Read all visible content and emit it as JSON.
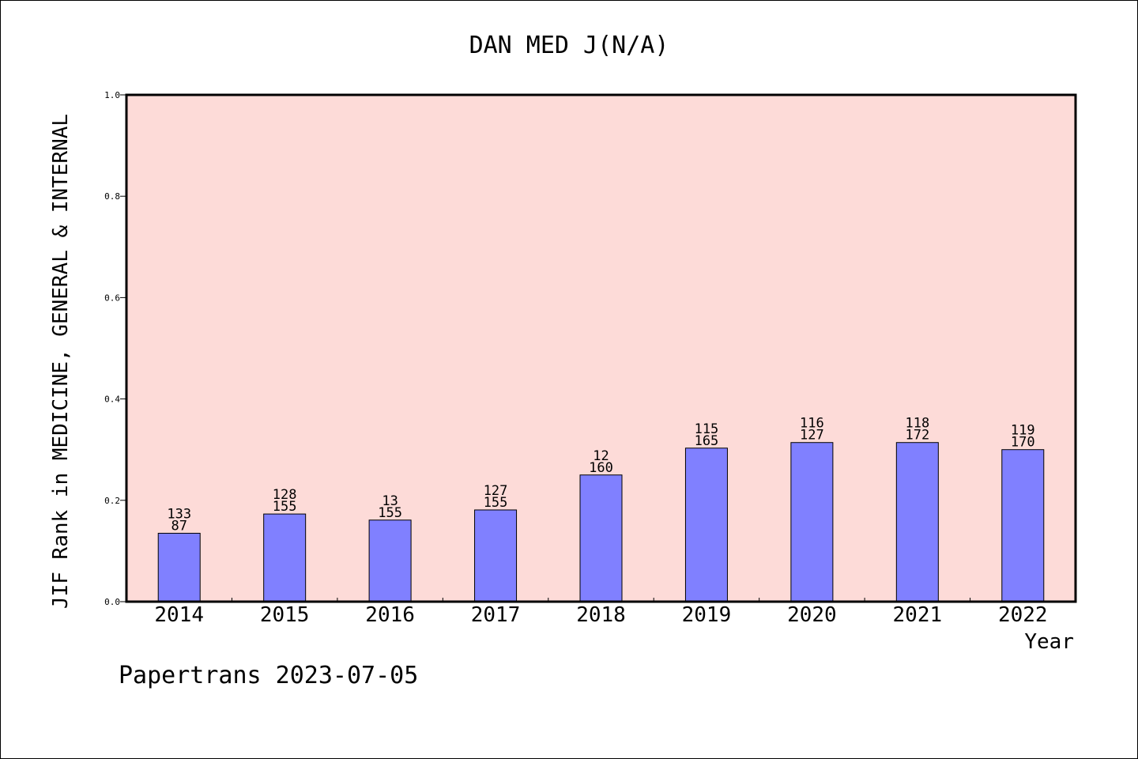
{
  "chart_data": {
    "type": "bar",
    "title": "DAN MED J(N/A)",
    "xlabel": "Year",
    "ylabel": "JIF Rank in MEDICINE, GENERAL & INTERNAL",
    "categories": [
      "2014",
      "2015",
      "2016",
      "2017",
      "2018",
      "2019",
      "2020",
      "2021",
      "2022"
    ],
    "values": [
      0.135,
      0.173,
      0.161,
      0.181,
      0.25,
      0.303,
      0.314,
      0.314,
      0.3
    ],
    "labels_top": [
      "133",
      "128",
      "13",
      "127",
      "12",
      "115",
      "116",
      "118",
      "119"
    ],
    "labels_bottom": [
      "87",
      "155",
      "155",
      "155",
      "160",
      "165",
      "127",
      "172",
      "170"
    ],
    "ylim": [
      0,
      1.0
    ],
    "yticks": [
      "0.0",
      "0.2",
      "0.4",
      "0.6",
      "0.8",
      "1.0"
    ],
    "grid": false,
    "colors": {
      "plot_background": "#fddbd8",
      "bar_fill": "#8080ff",
      "bar_stroke": "#000000"
    }
  },
  "footer": "Papertrans 2023-07-05"
}
